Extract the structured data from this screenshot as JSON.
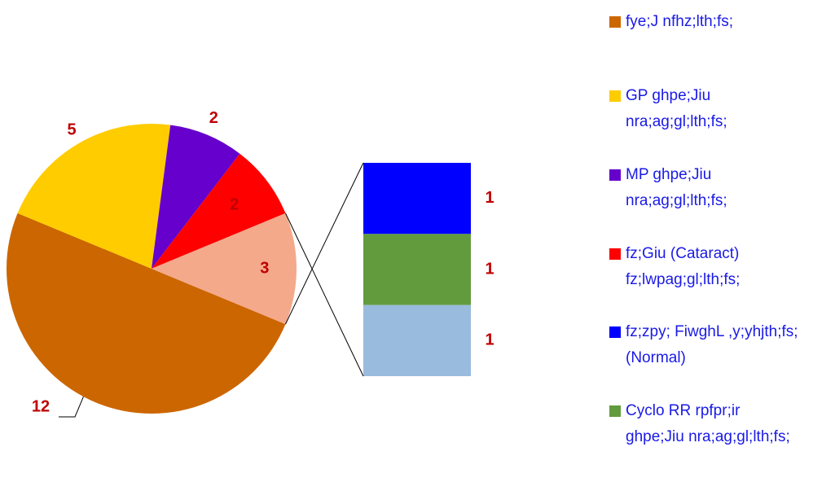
{
  "chart_data": {
    "type": "pie-of-bar",
    "pie": {
      "categories": [
        "fye;J nfhz;lth;fs;",
        "GP ghpe;Jiu nra;ag;gl;lth;fs;",
        "MP ghpe;Jiu nra;ag;gl;lth;fs;",
        "fz;Giu (Cataract) fz;lwpag;gl;lth;fs;",
        null
      ],
      "values": [
        12,
        5,
        2,
        2,
        3
      ],
      "colors": [
        "#CC6600",
        "#FFCC00",
        "#6600CC",
        "#FF0000",
        "#F4A98A"
      ]
    },
    "bar": {
      "categories": [
        "fz;zpy; FiwghL ,y;yhjth;fs; (Normal)",
        "Cyclo RR rpfpr;ir ghpe;Jiu nra;ag;gl;lth;fs;",
        null
      ],
      "values": [
        1,
        1,
        1
      ],
      "colors": [
        "#0000FF",
        "#629B3E",
        "#99BBDD"
      ]
    },
    "legend": "right"
  }
}
